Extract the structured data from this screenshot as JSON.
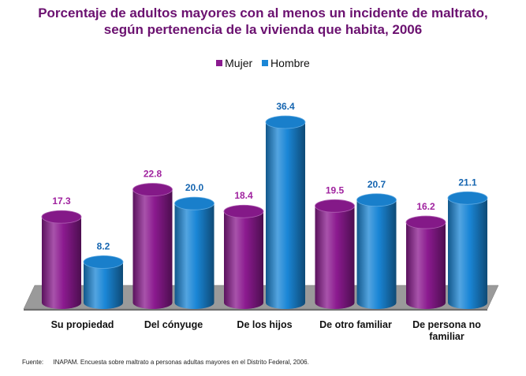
{
  "chart_data": {
    "type": "bar",
    "title": "Porcentaje de adultos mayores con al menos un incidente de maltrato, según pertenencia de la vivienda que habita, 2006",
    "title_lines": [
      "Porcentaje de adultos mayores con al menos un incidente de maltrato,",
      "según pertenencia de la vivienda que habita, 2006"
    ],
    "categories": [
      "Su propiedad",
      "Del cónyuge",
      "De los hijos",
      "De otro familiar",
      "De persona no familiar"
    ],
    "category_lines": [
      [
        "Su propiedad"
      ],
      [
        "Del cónyuge"
      ],
      [
        "De los hijos"
      ],
      [
        "De otro familiar"
      ],
      [
        "De persona no",
        "familiar"
      ]
    ],
    "series": [
      {
        "name": "Mujer",
        "values": [
          17.3,
          22.8,
          18.4,
          19.5,
          16.2
        ],
        "labels": [
          "17.3",
          "22.8",
          "18.4",
          "19.5",
          "16.2"
        ],
        "color": "#8b1a8f",
        "label_color": "#a0239f"
      },
      {
        "name": "Hombre",
        "values": [
          8.2,
          20.0,
          36.4,
          20.7,
          21.1
        ],
        "labels": [
          "8.2",
          "20.0",
          "36.4",
          "20.7",
          "21.1"
        ],
        "color": "#1a86d6",
        "label_color": "#1565b0"
      }
    ],
    "style": "3d-cylinder",
    "legend_position": "top-center",
    "grid": false,
    "ylim": [
      0,
      38
    ]
  },
  "source": {
    "label": "Fuente:",
    "text": "INAPAM. Encuesta sobre maltrato a personas adultas mayores en el Distrito Federal, 2006."
  }
}
